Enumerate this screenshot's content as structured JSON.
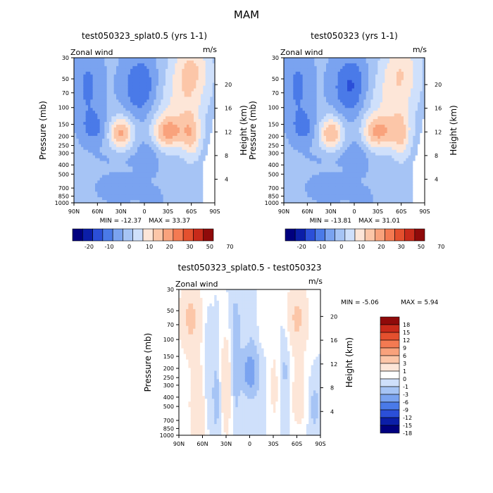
{
  "figure_title": "MAM",
  "chart_data": [
    {
      "type": "heatmap",
      "title": "test050323_splat0.5 (yrs 1-1)",
      "variable_label": "Zonal wind",
      "units_label": "m/s",
      "ylabel": "Pressure (mb)",
      "ylabel_right": "Height (km)",
      "x_ticks": [
        "90N",
        "60N",
        "30N",
        "0",
        "30S",
        "60S",
        "90S"
      ],
      "y_ticks": [
        "30",
        "50",
        "70",
        "100",
        "150",
        "200",
        "250",
        "300",
        "400",
        "500",
        "700",
        "850",
        "1000"
      ],
      "height_ticks": [
        "4",
        "8",
        "12",
        "16",
        "20"
      ],
      "min_label": "MIN = -12.37",
      "max_label": "MAX = 33.37",
      "colorbar_levels": [
        "-20",
        "-10",
        "0",
        "10",
        "20",
        "30",
        "50",
        "70"
      ],
      "colorbar_colors": [
        "#00007f",
        "#0b1ea8",
        "#2b4fd8",
        "#4a7ae8",
        "#7aa3f0",
        "#a6c4f5",
        "#cfe0fb",
        "#fde6d8",
        "#fcc6a8",
        "#f9a27c",
        "#f47a52",
        "#e4502e",
        "#c82a1a",
        "#8f0a0a"
      ],
      "field": {
        "background": 1,
        "blobs": [
          {
            "x": 22,
            "y": 198,
            "sx": 12,
            "sy": 90,
            "a": 6.5
          },
          {
            "x": -52,
            "y": 168,
            "sx": 16,
            "sy": 55,
            "a": -2.0
          },
          {
            "x": -5,
            "y": 60,
            "sx": 15,
            "sy": 40,
            "a": -11
          },
          {
            "x": 8,
            "y": 300,
            "sx": 12,
            "sy": 120,
            "a": -5
          },
          {
            "x": -30,
            "y": 335,
            "sx": 22,
            "sy": 40,
            "a": -2
          },
          {
            "x": -33,
            "y": 700,
            "sx": 20,
            "sy": 200,
            "a": -3
          },
          {
            "x": -65,
            "y": 160,
            "sx": 10,
            "sy": 45,
            "a": -6
          },
          {
            "x": -72,
            "y": 60,
            "sx": 12,
            "sy": 55,
            "a": -7
          },
          {
            "x": 10,
            "y": 900,
            "sx": 8,
            "sy": 160,
            "a": -4
          },
          {
            "x": 33,
            "y": 180,
            "sx": 14,
            "sy": 55,
            "a": 14
          },
          {
            "x": 60,
            "y": 200,
            "sx": 9,
            "sy": 100,
            "a": 13
          },
          {
            "x": 60,
            "y": 40,
            "sx": 18,
            "sy": 30,
            "a": 14
          },
          {
            "x": 45,
            "y": 100,
            "sx": 22,
            "sy": 80,
            "a": 8
          },
          {
            "x": -30,
            "y": 185,
            "sx": 11,
            "sy": 60,
            "a": 21
          }
        ],
        "clip_lower_right": true
      }
    },
    {
      "type": "heatmap",
      "title": "test050323 (yrs 1-1)",
      "variable_label": "Zonal wind",
      "units_label": "m/s",
      "ylabel": "Pressure (mb)",
      "ylabel_right": "Height (km)",
      "x_ticks": [
        "90N",
        "60N",
        "30N",
        "0",
        "30S",
        "60S",
        "90S"
      ],
      "y_ticks": [
        "30",
        "50",
        "70",
        "100",
        "150",
        "200",
        "250",
        "300",
        "400",
        "500",
        "700",
        "850",
        "1000"
      ],
      "height_ticks": [
        "4",
        "8",
        "12",
        "16",
        "20"
      ],
      "min_label": "MIN = -13.81",
      "max_label": "MAX = 31.01",
      "colorbar_levels": [
        "-20",
        "-10",
        "0",
        "10",
        "20",
        "30",
        "50",
        "70"
      ],
      "colorbar_colors": [
        "#00007f",
        "#0b1ea8",
        "#2b4fd8",
        "#4a7ae8",
        "#7aa3f0",
        "#a6c4f5",
        "#cfe0fb",
        "#fde6d8",
        "#fcc6a8",
        "#f9a27c",
        "#f47a52",
        "#e4502e",
        "#c82a1a",
        "#8f0a0a"
      ],
      "field": {
        "background": 1,
        "blobs": [
          {
            "x": 22,
            "y": 198,
            "sx": 12,
            "sy": 90,
            "a": 6.5
          },
          {
            "x": -52,
            "y": 168,
            "sx": 16,
            "sy": 55,
            "a": -2.0
          },
          {
            "x": -5,
            "y": 60,
            "sx": 15,
            "sy": 40,
            "a": -12
          },
          {
            "x": 8,
            "y": 300,
            "sx": 12,
            "sy": 120,
            "a": -5
          },
          {
            "x": -30,
            "y": 335,
            "sx": 22,
            "sy": 40,
            "a": -2
          },
          {
            "x": -33,
            "y": 700,
            "sx": 20,
            "sy": 200,
            "a": -3
          },
          {
            "x": -65,
            "y": 160,
            "sx": 10,
            "sy": 45,
            "a": -6
          },
          {
            "x": -72,
            "y": 60,
            "sx": 12,
            "sy": 55,
            "a": -7
          },
          {
            "x": 10,
            "y": 900,
            "sx": 8,
            "sy": 160,
            "a": -4
          },
          {
            "x": 33,
            "y": 180,
            "sx": 14,
            "sy": 55,
            "a": 13
          },
          {
            "x": 60,
            "y": 200,
            "sx": 9,
            "sy": 100,
            "a": 12
          },
          {
            "x": 60,
            "y": 40,
            "sx": 18,
            "sy": 30,
            "a": 12
          },
          {
            "x": 45,
            "y": 100,
            "sx": 22,
            "sy": 80,
            "a": 8
          },
          {
            "x": -30,
            "y": 185,
            "sx": 11,
            "sy": 60,
            "a": 20
          }
        ],
        "clip_lower_right": true
      }
    },
    {
      "type": "heatmap",
      "title": "test050323_splat0.5 - test050323",
      "variable_label": "Zonal wind",
      "units_label": "m/s",
      "ylabel": "Pressure (mb)",
      "ylabel_right": "Height (km)",
      "x_ticks": [
        "90N",
        "60N",
        "30N",
        "0",
        "30S",
        "60S",
        "90S"
      ],
      "y_ticks": [
        "30",
        "50",
        "70",
        "100",
        "150",
        "200",
        "250",
        "300",
        "400",
        "500",
        "700",
        "850",
        "1000"
      ],
      "height_ticks": [
        "4",
        "8",
        "12",
        "16",
        "20"
      ],
      "min_label": "MIN =  -5.06",
      "max_label": "MAX =   5.94",
      "colorbar_levels": [
        "18",
        "15",
        "12",
        "9",
        "6",
        "3",
        "1",
        "0",
        "-1",
        "-3",
        "-6",
        "-9",
        "-12",
        "-15",
        "-18"
      ],
      "colorbar_colors": [
        "#8f0a0a",
        "#c82a1a",
        "#e4502e",
        "#f47a52",
        "#f9a27c",
        "#fcc6a8",
        "#fde6d8",
        "#ffffff",
        "#cfe0fb",
        "#a6c4f5",
        "#7aa3f0",
        "#4a7ae8",
        "#2b4fd8",
        "#0b1ea8",
        "#00007f"
      ],
      "field": {
        "background": 0,
        "blobs": [
          {
            "x": -75,
            "y": 60,
            "sx": 10,
            "sy": 50,
            "a": 3.5
          },
          {
            "x": -65,
            "y": 500,
            "sx": 8,
            "sy": 600,
            "a": 2.8
          },
          {
            "x": -55,
            "y": 250,
            "sx": 4,
            "sy": 400,
            "a": -1.5
          },
          {
            "x": -42,
            "y": 400,
            "sx": 5,
            "sy": 500,
            "a": -1.6
          },
          {
            "x": -30,
            "y": 300,
            "sx": 5,
            "sy": 400,
            "a": 3.0
          },
          {
            "x": -18,
            "y": 150,
            "sx": 5,
            "sy": 300,
            "a": -2.0
          },
          {
            "x": 0,
            "y": 220,
            "sx": 6,
            "sy": 80,
            "a": -4.5
          },
          {
            "x": 8,
            "y": 100,
            "sx": 10,
            "sy": 200,
            "a": -1.2
          },
          {
            "x": 15,
            "y": 60,
            "sx": 6,
            "sy": 60,
            "a": 1.5
          },
          {
            "x": 32,
            "y": 300,
            "sx": 6,
            "sy": 400,
            "a": 1.5
          },
          {
            "x": 45,
            "y": 200,
            "sx": 6,
            "sy": 300,
            "a": -1.5
          },
          {
            "x": 60,
            "y": 60,
            "sx": 10,
            "sy": 50,
            "a": 3.5
          },
          {
            "x": 62,
            "y": 400,
            "sx": 8,
            "sy": 300,
            "a": 2.0
          },
          {
            "x": 82,
            "y": 500,
            "sx": 6,
            "sy": 300,
            "a": -1.5
          }
        ],
        "clip_lower_right": false
      }
    }
  ]
}
